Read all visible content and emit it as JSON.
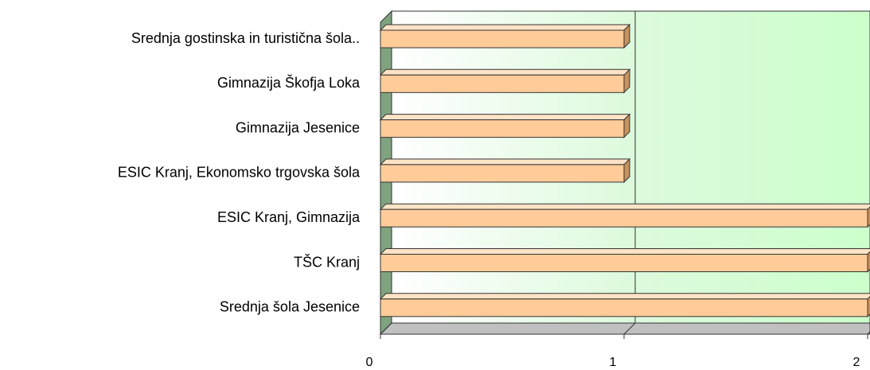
{
  "chart_data": {
    "type": "bar3d",
    "orientation": "horizontal",
    "categories": [
      "Srednja gostinska in turistična šola..",
      "Gimnazija Škofja Loka",
      "Gimnazija Jesenice",
      "ESIC Kranj, Ekonomsko trgovska šola",
      "ESIC Kranj, Gimnazija",
      "TŠC Kranj",
      "Srednja šola Jesenice"
    ],
    "values": [
      1,
      1,
      1,
      1,
      2,
      2,
      2
    ],
    "color": "#ffcc99",
    "xlim": [
      0,
      2
    ],
    "xticks": [
      0,
      1,
      2
    ],
    "grid": true
  }
}
